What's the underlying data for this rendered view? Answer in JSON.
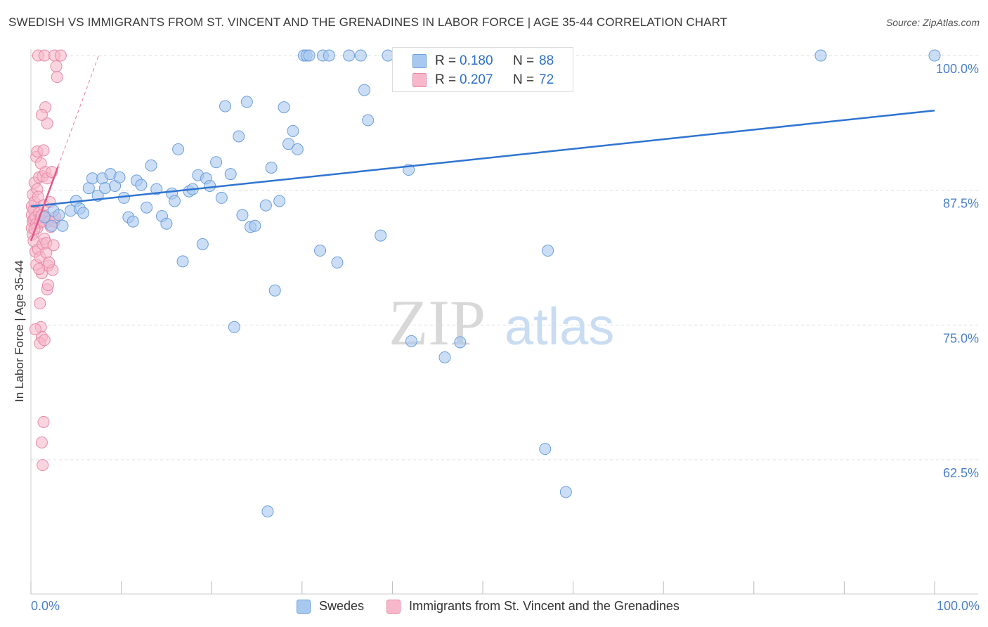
{
  "title": "SWEDISH VS IMMIGRANTS FROM ST. VINCENT AND THE GRENADINES IN LABOR FORCE | AGE 35-44 CORRELATION CHART",
  "source": "Source: ZipAtlas.com",
  "watermark": "ZIPatlas",
  "legend": {
    "series1_label": "Swedes",
    "series2_label": "Immigrants from St. Vincent and the Grenadines",
    "r_label": "R =",
    "n_label": "N =",
    "series1_r": "0.180",
    "series1_n": "88",
    "series2_r": "0.207",
    "series2_n": "72"
  },
  "colors": {
    "blue_fill": "#a8c8f0",
    "blue_stroke": "#6c9fdc",
    "blue_line": "#2f74d0",
    "pink_fill": "#f6b8ca",
    "pink_stroke": "#e88aa8",
    "pink_line": "#e05a88",
    "tick_label": "#4a7fcb",
    "grid": "#dddddd"
  },
  "chart_data": {
    "type": "scatter",
    "title": "SWEDISH VS IMMIGRANTS FROM ST. VINCENT AND THE GRENADINES IN LABOR FORCE | AGE 35-44 CORRELATION CHART",
    "xlabel": "",
    "ylabel": "In Labor Force | Age 35-44",
    "xlim": [
      0,
      100
    ],
    "ylim": [
      50,
      101.5
    ],
    "x_tick_labels": [
      "0.0%",
      "100.0%"
    ],
    "y_ticks": [
      62.5,
      75.0,
      87.5,
      100.0
    ],
    "y_tick_labels": [
      "62.5%",
      "75.0%",
      "87.5%",
      "100.0%"
    ],
    "grid": true,
    "legend_position": "top-center",
    "series": [
      {
        "name": "Swedes",
        "color": "#a8c8f0",
        "trend": {
          "x": [
            0,
            100
          ],
          "y": [
            86.0,
            94.9
          ]
        },
        "points": [
          [
            1.5,
            85.0
          ],
          [
            2.3,
            84.2
          ],
          [
            2.5,
            85.6
          ],
          [
            3.1,
            85.2
          ],
          [
            3.5,
            84.2
          ],
          [
            4.4,
            85.6
          ],
          [
            5.0,
            86.5
          ],
          [
            5.4,
            85.8
          ],
          [
            5.8,
            85.4
          ],
          [
            6.4,
            87.7
          ],
          [
            6.8,
            88.6
          ],
          [
            7.4,
            87.0
          ],
          [
            7.9,
            88.6
          ],
          [
            8.2,
            87.7
          ],
          [
            8.8,
            89.0
          ],
          [
            9.3,
            87.9
          ],
          [
            9.8,
            88.7
          ],
          [
            10.3,
            86.8
          ],
          [
            10.8,
            85.0
          ],
          [
            11.3,
            84.6
          ],
          [
            11.7,
            88.4
          ],
          [
            12.2,
            88.0
          ],
          [
            12.8,
            85.9
          ],
          [
            13.3,
            89.8
          ],
          [
            13.9,
            87.6
          ],
          [
            14.5,
            85.1
          ],
          [
            15.0,
            84.4
          ],
          [
            15.6,
            87.2
          ],
          [
            15.9,
            86.5
          ],
          [
            16.3,
            91.3
          ],
          [
            16.8,
            80.9
          ],
          [
            17.5,
            87.4
          ],
          [
            17.9,
            87.6
          ],
          [
            18.5,
            88.9
          ],
          [
            19.0,
            82.5
          ],
          [
            19.4,
            88.6
          ],
          [
            19.8,
            87.9
          ],
          [
            20.5,
            90.1
          ],
          [
            21.1,
            86.8
          ],
          [
            21.5,
            95.3
          ],
          [
            22.1,
            89.0
          ],
          [
            22.5,
            74.8
          ],
          [
            23.0,
            92.5
          ],
          [
            23.4,
            85.2
          ],
          [
            23.9,
            95.7
          ],
          [
            24.3,
            84.1
          ],
          [
            24.8,
            84.2
          ],
          [
            26.0,
            86.1
          ],
          [
            26.6,
            89.6
          ],
          [
            27.0,
            78.2
          ],
          [
            27.5,
            86.5
          ],
          [
            28.0,
            95.2
          ],
          [
            28.5,
            91.8
          ],
          [
            29.0,
            93.0
          ],
          [
            29.5,
            91.3
          ],
          [
            30.2,
            100.0
          ],
          [
            30.5,
            100.0
          ],
          [
            30.8,
            100.0
          ],
          [
            32.0,
            81.9
          ],
          [
            32.3,
            100.0
          ],
          [
            33.0,
            100.0
          ],
          [
            33.9,
            80.8
          ],
          [
            35.2,
            100.0
          ],
          [
            36.5,
            100.0
          ],
          [
            36.9,
            96.8
          ],
          [
            37.3,
            94.0
          ],
          [
            38.7,
            83.3
          ],
          [
            39.5,
            100.0
          ],
          [
            40.8,
            100.0
          ],
          [
            41.8,
            89.4
          ],
          [
            42.1,
            73.5
          ],
          [
            42.6,
            100.0
          ],
          [
            43.5,
            100.0
          ],
          [
            45.1,
            100.0
          ],
          [
            45.8,
            72.0
          ],
          [
            47.5,
            73.4
          ],
          [
            48.1,
            100.0
          ],
          [
            50.5,
            100.0
          ],
          [
            52.5,
            100.0
          ],
          [
            56.0,
            100.0
          ],
          [
            56.7,
            100.0
          ],
          [
            56.9,
            63.5
          ],
          [
            57.2,
            81.9
          ],
          [
            59.2,
            59.5
          ],
          [
            26.2,
            57.7
          ],
          [
            87.4,
            100.0
          ],
          [
            100.0,
            100.0
          ],
          [
            41.0,
            100.0
          ]
        ]
      },
      {
        "name": "Immigrants from St. Vincent and the Grenadines",
        "color": "#f6b8ca",
        "trend": {
          "x": [
            0,
            3.0
          ],
          "y": [
            82.8,
            89.7
          ]
        },
        "trend_extension": {
          "x": [
            3.0,
            7.5
          ],
          "y": [
            89.7,
            100.0
          ]
        },
        "points": [
          [
            0.1,
            84.0
          ],
          [
            0.1,
            85.2
          ],
          [
            0.1,
            86.0
          ],
          [
            0.2,
            83.4
          ],
          [
            0.2,
            84.6
          ],
          [
            0.2,
            87.1
          ],
          [
            0.3,
            85.7
          ],
          [
            0.3,
            82.8
          ],
          [
            0.3,
            84.8
          ],
          [
            0.4,
            86.4
          ],
          [
            0.4,
            88.2
          ],
          [
            0.5,
            81.8
          ],
          [
            0.5,
            85.0
          ],
          [
            0.6,
            84.4
          ],
          [
            0.6,
            90.6
          ],
          [
            0.6,
            80.6
          ],
          [
            0.7,
            87.6
          ],
          [
            0.7,
            84.0
          ],
          [
            0.8,
            86.9
          ],
          [
            0.8,
            82.0
          ],
          [
            0.9,
            85.4
          ],
          [
            0.9,
            88.7
          ],
          [
            1.0,
            81.3
          ],
          [
            1.0,
            84.5
          ],
          [
            1.1,
            85.0
          ],
          [
            1.1,
            90.0
          ],
          [
            1.2,
            85.2
          ],
          [
            1.2,
            79.8
          ],
          [
            1.3,
            82.5
          ],
          [
            1.3,
            88.8
          ],
          [
            1.4,
            84.6
          ],
          [
            1.4,
            86.1
          ],
          [
            1.5,
            83.0
          ],
          [
            1.6,
            89.2
          ],
          [
            1.6,
            85.1
          ],
          [
            1.7,
            82.6
          ],
          [
            1.7,
            81.7
          ],
          [
            1.8,
            88.6
          ],
          [
            1.8,
            78.3
          ],
          [
            1.9,
            80.5
          ],
          [
            2.0,
            84.6
          ],
          [
            2.1,
            86.4
          ],
          [
            2.2,
            84.1
          ],
          [
            2.3,
            89.2
          ],
          [
            2.4,
            80.1
          ],
          [
            2.5,
            82.4
          ],
          [
            2.6,
            84.6
          ],
          [
            2.7,
            85.0
          ],
          [
            0.8,
            100.0
          ],
          [
            1.5,
            100.0
          ],
          [
            1.6,
            95.2
          ],
          [
            1.8,
            93.7
          ],
          [
            2.6,
            100.0
          ],
          [
            2.8,
            99.0
          ],
          [
            2.9,
            98.0
          ],
          [
            3.3,
            100.0
          ],
          [
            1.2,
            94.5
          ],
          [
            0.7,
            91.1
          ],
          [
            1.4,
            91.2
          ],
          [
            1.0,
            77.0
          ],
          [
            1.1,
            74.8
          ],
          [
            1.2,
            73.9
          ],
          [
            1.0,
            73.3
          ],
          [
            0.5,
            74.6
          ],
          [
            1.5,
            73.6
          ],
          [
            1.4,
            66.0
          ],
          [
            1.2,
            64.1
          ],
          [
            1.3,
            62.0
          ],
          [
            2.0,
            80.8
          ],
          [
            0.9,
            80.2
          ],
          [
            1.9,
            78.7
          ],
          [
            0.4,
            83.9
          ]
        ]
      }
    ]
  }
}
